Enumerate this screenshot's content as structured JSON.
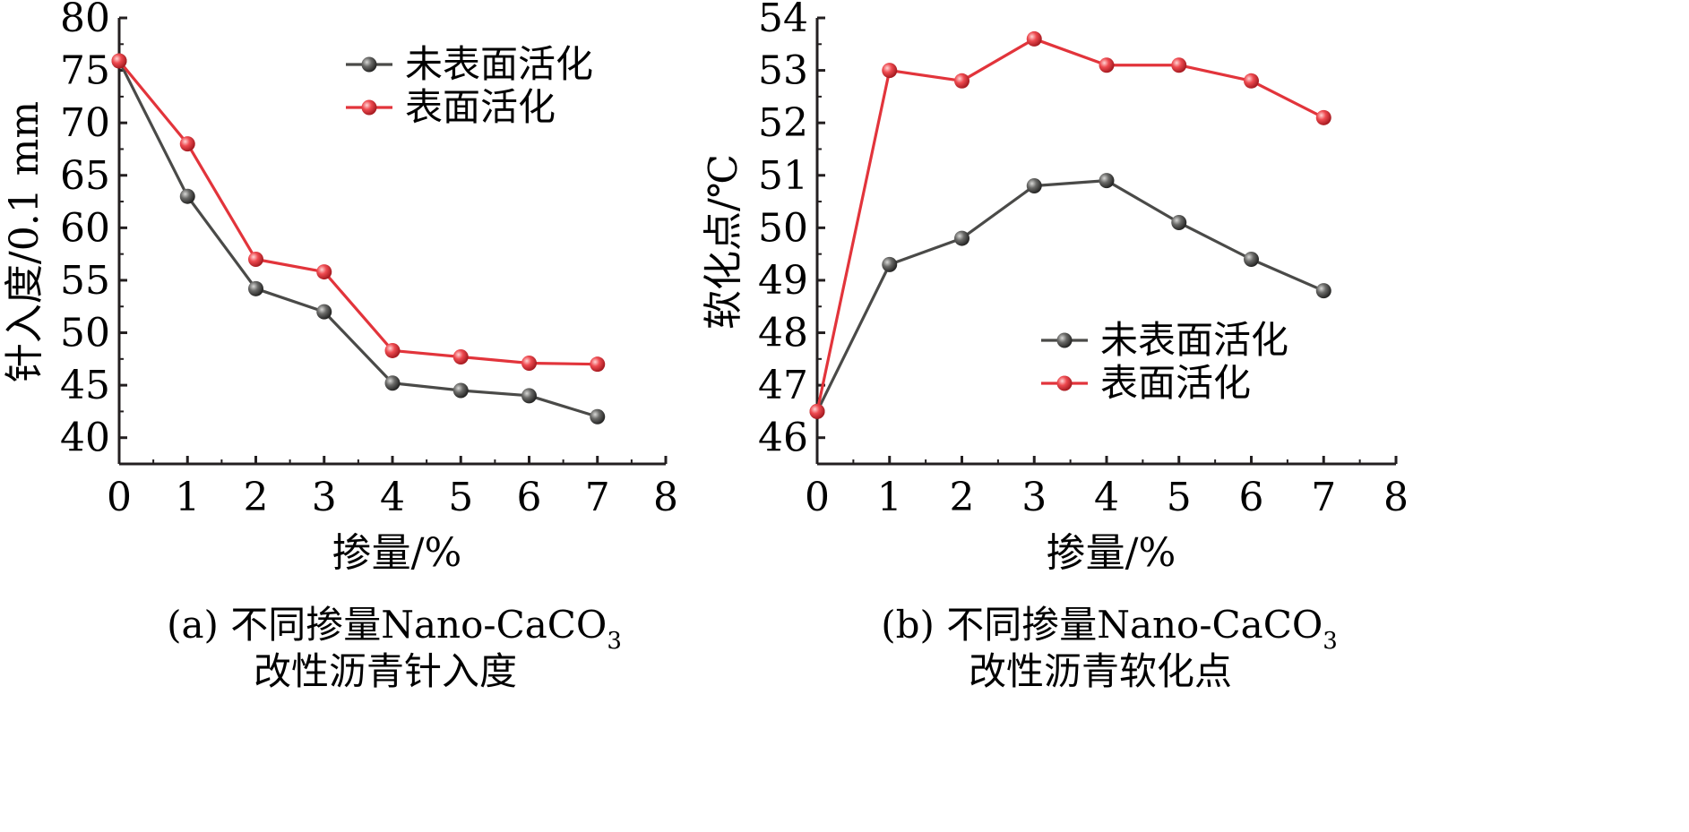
{
  "chart_data": [
    {
      "type": "line",
      "x": [
        0,
        1,
        2,
        3,
        4,
        5,
        6,
        7
      ],
      "xlim": [
        0,
        8
      ],
      "xticks": [
        "0",
        "1",
        "2",
        "3",
        "4",
        "5",
        "6",
        "7",
        "8"
      ],
      "ylim": [
        37.5,
        80
      ],
      "yticks": [
        "40",
        "45",
        "50",
        "55",
        "60",
        "65",
        "70",
        "75",
        "80"
      ],
      "xlabel": "掺量/%",
      "ylabel": "针入度/0.1 mm",
      "legend_position": "top-right",
      "series": [
        {
          "name": "未表面活化",
          "color": "#4a4a48",
          "values": [
            75.9,
            63.0,
            54.2,
            52.0,
            45.2,
            44.5,
            44.0,
            42.0
          ]
        },
        {
          "name": "表面活化",
          "color": "#e2343b",
          "values": [
            75.9,
            68.0,
            57.0,
            55.8,
            48.3,
            47.7,
            47.1,
            47.0
          ]
        }
      ],
      "caption_line1": "(a) 不同掺量Nano-CaCO",
      "caption_sub": "3",
      "caption_line2": "改性沥青针入度"
    },
    {
      "type": "line",
      "x": [
        0,
        1,
        2,
        3,
        4,
        5,
        6,
        7
      ],
      "xlim": [
        0,
        8
      ],
      "xticks": [
        "0",
        "1",
        "2",
        "3",
        "4",
        "5",
        "6",
        "7",
        "8"
      ],
      "ylim": [
        45.5,
        54
      ],
      "yticks": [
        "46",
        "47",
        "48",
        "49",
        "50",
        "51",
        "52",
        "53",
        "54"
      ],
      "xlabel": "掺量/%",
      "ylabel": "软化点/℃",
      "legend_position": "center-right",
      "series": [
        {
          "name": "未表面活化",
          "color": "#4a4a48",
          "values": [
            46.5,
            49.3,
            49.8,
            50.8,
            50.9,
            50.1,
            49.4,
            48.8
          ]
        },
        {
          "name": "表面活化",
          "color": "#e2343b",
          "values": [
            46.5,
            53.0,
            52.8,
            53.6,
            53.1,
            53.1,
            52.8,
            52.1
          ]
        }
      ],
      "caption_line1": "(b) 不同掺量Nano-CaCO",
      "caption_sub": "3",
      "caption_line2": "改性沥青软化点"
    }
  ]
}
